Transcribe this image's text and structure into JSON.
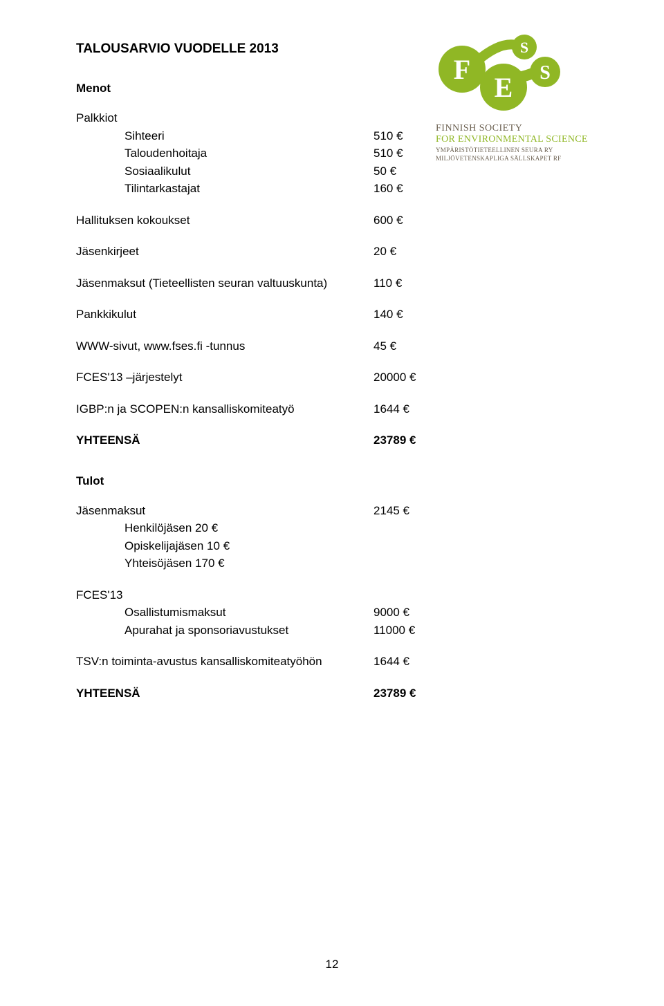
{
  "title": "TALOUSARVIO VUODELLE 2013",
  "colors": {
    "text": "#000000",
    "background": "#ffffff",
    "logo_green": "#90b725",
    "logo_brown": "#6a5f4f",
    "logo_letters": "#ffffff"
  },
  "fonts": {
    "body_family": "Arial, Helvetica, sans-serif",
    "logo_family": "Georgia, serif",
    "body_size_pt": 13,
    "title_size_pt": 14
  },
  "menot": {
    "header": "Menot",
    "palkkiot": {
      "label": "Palkkiot",
      "items": [
        {
          "label": "Sihteeri",
          "value": "510 €"
        },
        {
          "label": "Taloudenhoitaja",
          "value": "510 €"
        },
        {
          "label": "Sosiaalikulut",
          "value": "50 €"
        },
        {
          "label": "Tilintarkastajat",
          "value": "160 €"
        }
      ]
    },
    "rows": [
      {
        "label": "Hallituksen kokoukset",
        "value": "600 €"
      },
      {
        "label": "Jäsenkirjeet",
        "value": "20 €"
      },
      {
        "label": "Jäsenmaksut (Tieteellisten seuran valtuuskunta)",
        "value": "110 €"
      },
      {
        "label": "Pankkikulut",
        "value": "140 €"
      },
      {
        "label": "WWW-sivut, www.fses.fi -tunnus",
        "value": "45 €"
      },
      {
        "label": "FCES'13 –järjestelyt",
        "value": "20000 €"
      },
      {
        "label": "IGBP:n ja SCOPEN:n kansalliskomiteatyö",
        "value": "1644 €"
      }
    ],
    "total": {
      "label": "YHTEENSÄ",
      "value": "23789 €"
    }
  },
  "tulot": {
    "header": "Tulot",
    "jasenmaksut": {
      "label": "Jäsenmaksut",
      "value": "2145 €",
      "sub": [
        "Henkilöjäsen 20 €",
        "Opiskelijajäsen 10 €",
        "Yhteisöjäsen 170 €"
      ]
    },
    "fces": {
      "label": "FCES'13",
      "items": [
        {
          "label": "Osallistumismaksut",
          "value": "9000 €"
        },
        {
          "label": "Apurahat ja sponsoriavustukset",
          "value": "11000 €"
        }
      ]
    },
    "tsv": {
      "label": "TSV:n toiminta-avustus kansalliskomiteatyöhön",
      "value": "1644 €"
    },
    "total": {
      "label": "YHTEENSÄ",
      "value": "23789 €"
    }
  },
  "logo": {
    "line1": "FINNISH SOCIETY",
    "line2": "FOR ENVIRONMENTAL SCIENCE",
    "line3": "YMPÄRISTÖTIETEELLINEN SEURA RY",
    "line4": "MILJÖVETENSKAPLIGA SÄLLSKAPET RF",
    "letters": {
      "F": "F",
      "E": "E",
      "S1": "S",
      "S2": "S"
    }
  },
  "page_number": "12"
}
